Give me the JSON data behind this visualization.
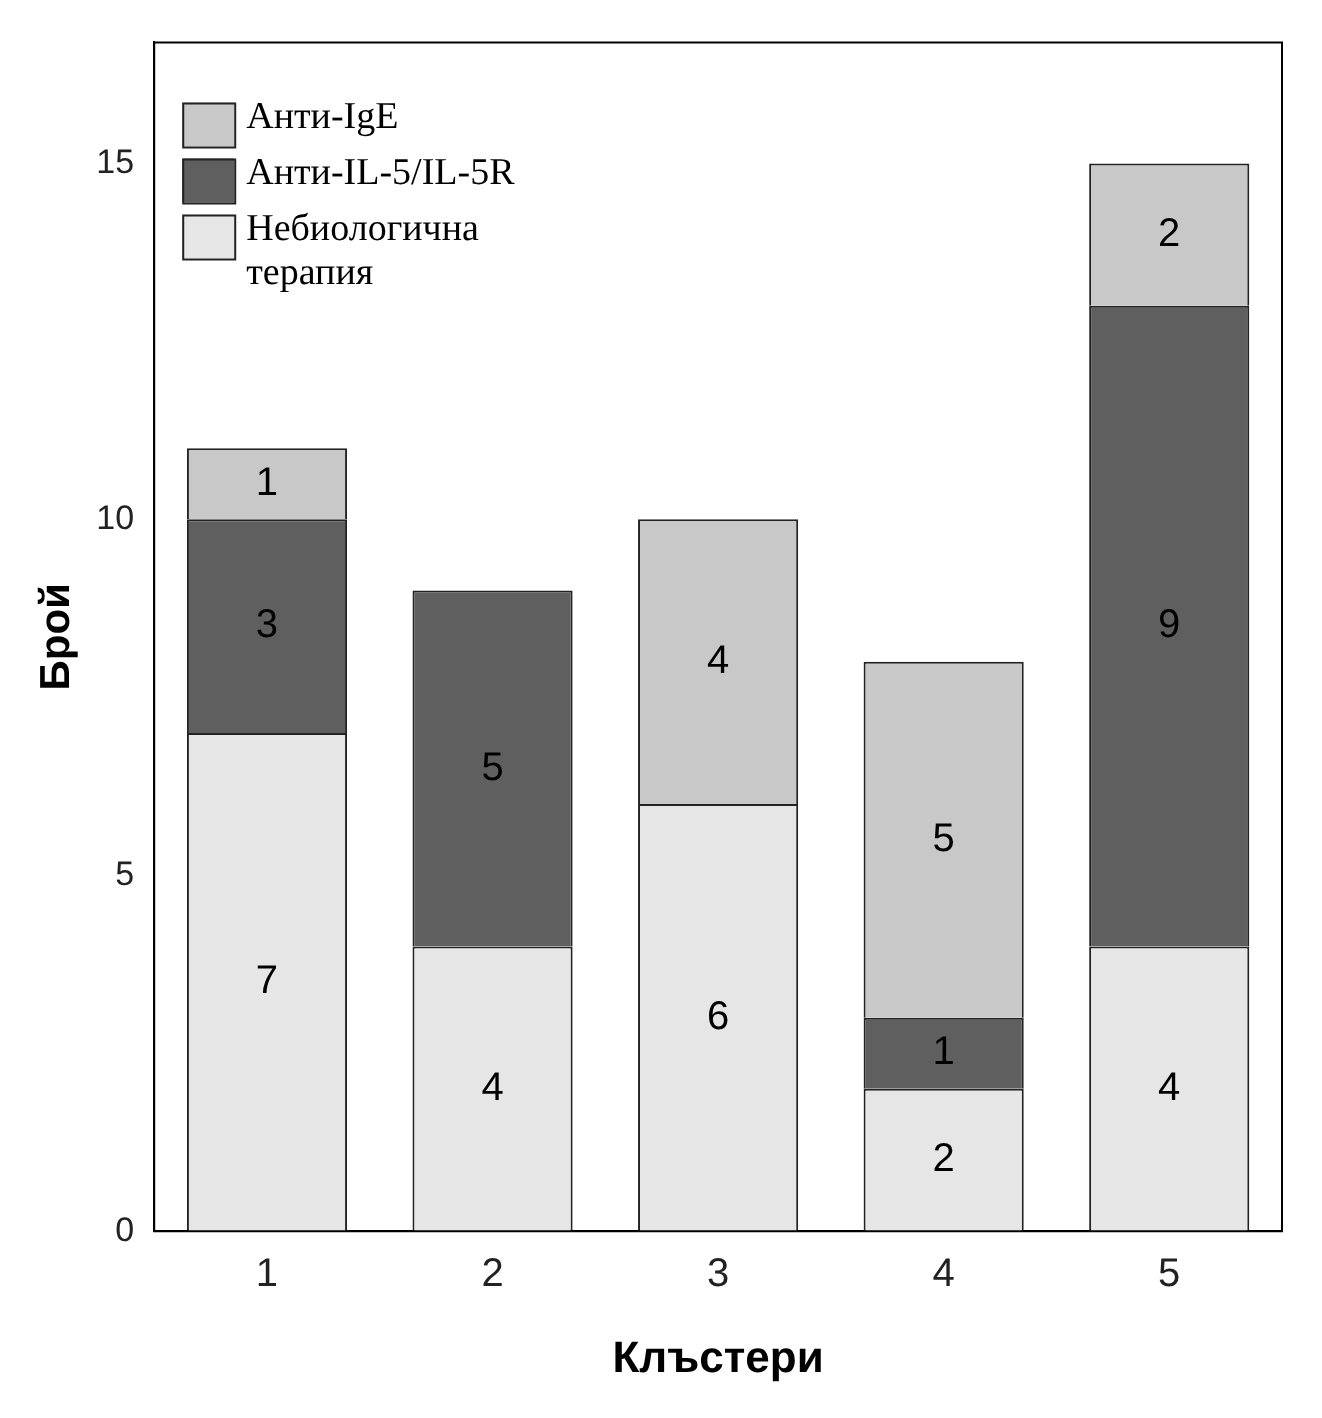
{
  "chart_data": {
    "type": "bar",
    "stacked": true,
    "xlabel": "Клъстери",
    "ylabel": "Брой",
    "categories": [
      "1",
      "2",
      "3",
      "4",
      "5"
    ],
    "series": [
      {
        "name": "Небиологична терапия",
        "color": "#e6e6e6",
        "values": [
          7,
          4,
          6,
          2,
          4
        ]
      },
      {
        "name": "Анти-IL-5/IL-5R",
        "color": "#5f5f5f",
        "values": [
          3,
          5,
          null,
          1,
          9
        ]
      },
      {
        "name": "Анти-IgE",
        "color": "#c8c8c8",
        "values": [
          1,
          null,
          4,
          5,
          2
        ]
      }
    ],
    "ylim": [
      0,
      16.7
    ],
    "yticks": [
      0,
      5,
      10,
      15
    ],
    "grid": false,
    "legend": "top left",
    "data_labels": true
  }
}
